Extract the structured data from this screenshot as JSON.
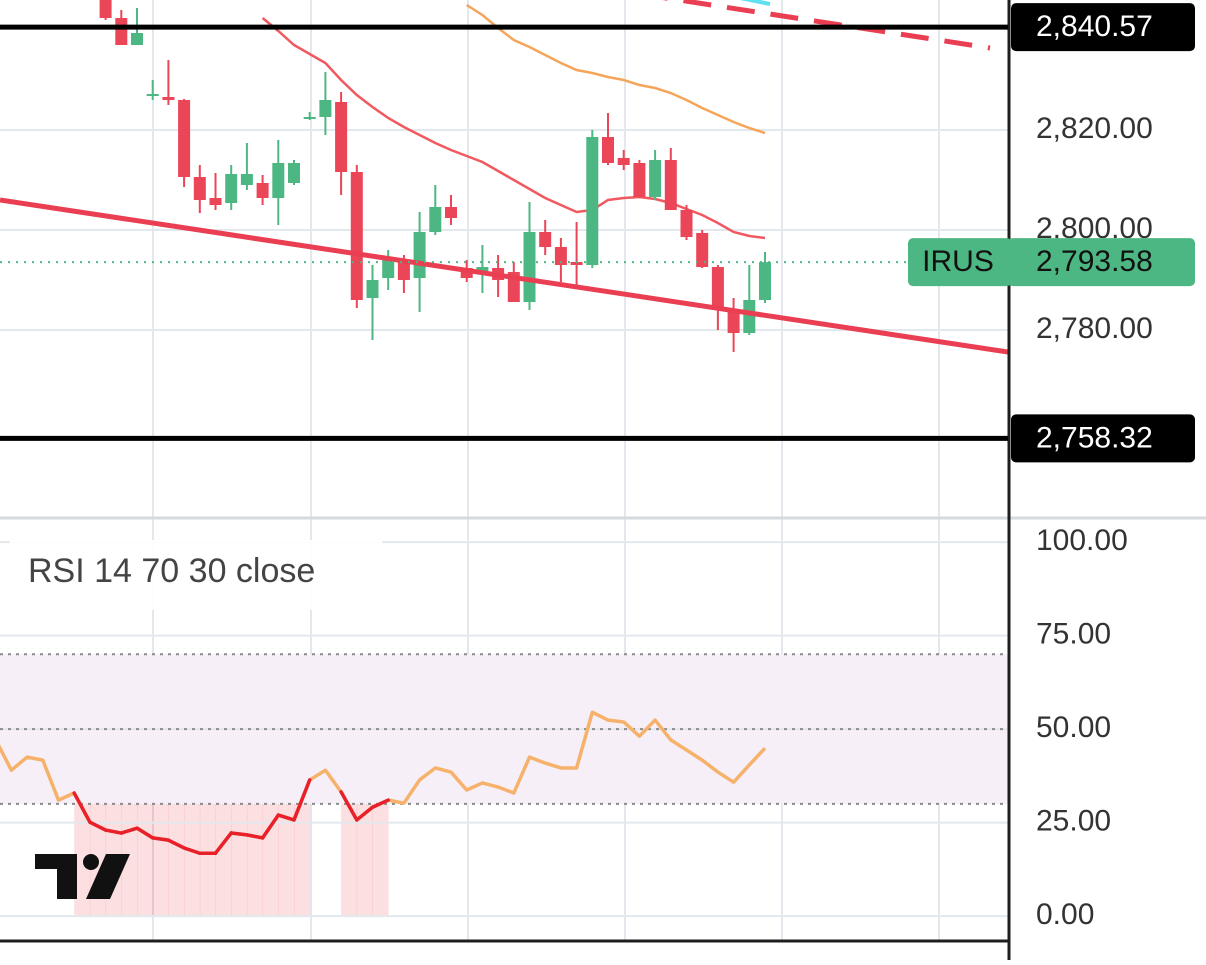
{
  "chart_data": [
    {
      "type": "candlestick",
      "open": [
        2846.5,
        2842.4,
        2837,
        2827,
        2826.6,
        2826,
        2810.6,
        2806.4,
        2805.4,
        2809,
        2809.4,
        2806.4,
        2809.4,
        2822.4,
        2822.6,
        2825.6,
        2811.6,
        2786.4,
        2790.4,
        2794,
        2790.4,
        2799.6,
        2804.6,
        2792.4,
        2791.6,
        2792.4,
        2791.6,
        2785.6,
        2799.6,
        2796.6,
        2793.6,
        2793,
        2818.6,
        2814.4,
        2813.4,
        2806.6,
        2814,
        2804,
        2799.4,
        2792.6,
        2784,
        2779.4,
        2786
      ],
      "high": [
        2848,
        2844,
        2844.4,
        2830,
        2834,
        2826.2,
        2813,
        2811.4,
        2813,
        2817.4,
        2811,
        2818,
        2814,
        2823.6,
        2831.6,
        2827.6,
        2813,
        2793,
        2796,
        2795,
        2803.6,
        2809,
        2807,
        2794,
        2797,
        2795,
        2793.6,
        2805.6,
        2802,
        2798.4,
        2801.6,
        2820,
        2823.4,
        2816,
        2814,
        2816,
        2816.4,
        2805,
        2800,
        2793,
        2786.4,
        2793,
        2795.6
      ],
      "low": [
        2842,
        2837,
        2837,
        2826,
        2825,
        2808.6,
        2803.4,
        2804,
        2804,
        2808,
        2805,
        2801,
        2809,
        2822,
        2819,
        2807,
        2784.4,
        2778,
        2788,
        2787.4,
        2783.6,
        2799,
        2801,
        2789.6,
        2787.4,
        2786.6,
        2785.6,
        2784,
        2795,
        2789.6,
        2789,
        2792.4,
        2813,
        2812,
        2806.4,
        2806,
        2804,
        2798,
        2792.4,
        2780,
        2775.6,
        2779,
        2785.4
      ],
      "close": [
        2842.4,
        2837,
        2839.4,
        2827.2,
        2826,
        2810.6,
        2806,
        2805,
        2811.2,
        2811.2,
        2806.4,
        2813.4,
        2813.4,
        2822.6,
        2826,
        2811.6,
        2786,
        2790,
        2794.6,
        2790,
        2799.6,
        2804.6,
        2802.4,
        2790.4,
        2792.6,
        2790,
        2785.6,
        2799.6,
        2796.6,
        2793,
        2793,
        2818.6,
        2813.4,
        2813,
        2806.6,
        2814,
        2804,
        2798.6,
        2792.6,
        2784,
        2779.4,
        2786,
        2793.58
      ],
      "up_color": "#4cb782",
      "down_color": "#eb4558",
      "series": [
        {
          "color": "#f0595f",
          "values": [
            null,
            null,
            null,
            null,
            null,
            null,
            null,
            null,
            null,
            null,
            2842.4,
            2839.8,
            2837,
            2835.2,
            2833.4,
            2830,
            2827,
            2824.6,
            2822.4,
            2820.6,
            2819,
            2817.4,
            2816,
            2814.8,
            2813.6,
            2811.8,
            2810,
            2808.2,
            2806.4,
            2805,
            2803.6,
            2804,
            2806,
            2806.4,
            2806.6,
            2806.2,
            2805.4,
            2804.2,
            2803,
            2801.4,
            2799.6,
            2798.8,
            2798.4
          ]
        },
        {
          "color": "#f5a55a",
          "values": [
            null,
            null,
            null,
            null,
            null,
            null,
            null,
            null,
            null,
            null,
            null,
            null,
            null,
            null,
            null,
            null,
            null,
            null,
            null,
            null,
            null,
            null,
            null,
            2845,
            2843,
            2840.4,
            2838,
            2836.6,
            2835,
            2833.4,
            2832,
            2831.4,
            2830.6,
            2830,
            2829,
            2828.4,
            2827.4,
            2826,
            2824.4,
            2823,
            2821.6,
            2820.4,
            2819.4
          ]
        }
      ],
      "ylim": [
        2743,
        2846
      ],
      "yticks": [
        {
          "value": 2780,
          "label": "2,780.00"
        },
        {
          "value": 2800,
          "label": "2,800.00"
        },
        {
          "value": 2820,
          "label": "2,820.00"
        }
      ],
      "grid": true,
      "price_lines": [
        {
          "value": 2840.57,
          "label": "2,840.57",
          "color": "#000000"
        },
        {
          "value": 2758.32,
          "label": "2,758.32",
          "color": "#000000"
        }
      ],
      "last_price": {
        "symbol": "IRUS",
        "value": 2793.58,
        "label": "2,793.58",
        "color": "#4cb782"
      }
    },
    {
      "type": "line",
      "title": "RSI 14 70 30 close",
      "values": [
        47.1,
        39,
        42.5,
        41.7,
        31,
        32.9,
        25.1,
        23,
        22.2,
        23.5,
        20.9,
        20.3,
        18.2,
        16.8,
        16.8,
        22.2,
        21.7,
        20.9,
        27,
        25.7,
        36.4,
        39,
        33.2,
        25.7,
        29.1,
        31,
        30.2,
        36.4,
        39.6,
        38.5,
        33.7,
        35.6,
        34.5,
        32.9,
        42.5,
        40.9,
        39.6,
        39.6,
        54.5,
        52.4,
        51.9,
        48.1,
        52.4,
        47.1,
        44.4,
        41.7,
        38.5,
        35.8,
        40.4,
        44.9
      ],
      "color": "#f6b26b",
      "oversold_color": "#e8202a",
      "ylim": [
        -6.4,
        105.9
      ],
      "yticks": [
        {
          "value": 0,
          "label": "0.00"
        },
        {
          "value": 25,
          "label": "25.00"
        },
        {
          "value": 50,
          "label": "50.00"
        },
        {
          "value": 75,
          "label": "75.00"
        },
        {
          "value": 100,
          "label": "100.00"
        }
      ],
      "levels": [
        70,
        50,
        30
      ]
    }
  ]
}
